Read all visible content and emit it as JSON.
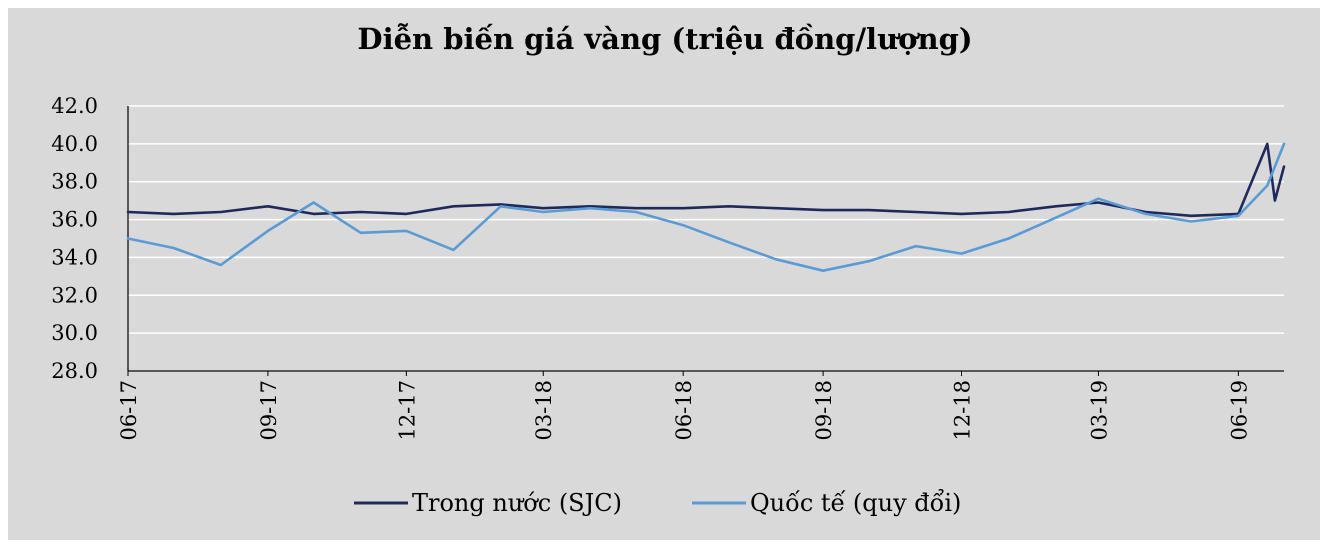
{
  "chart_data": {
    "type": "line",
    "title": "Diễn biến giá vàng (triệu đồng/lượng)",
    "xlabel": "",
    "ylabel": "",
    "ylim": [
      28.0,
      42.0
    ],
    "y_ticks": [
      "42.0",
      "40.0",
      "38.0",
      "36.0",
      "34.0",
      "32.0",
      "30.0",
      "28.0"
    ],
    "x_ticks": [
      "06-17",
      "09-17",
      "12-17",
      "03-18",
      "06-18",
      "09-18",
      "12-18",
      "03-19",
      "06-19"
    ],
    "x_range": [
      "2017-06",
      "2019-07"
    ],
    "grid": "horizontal",
    "legend_position": "bottom",
    "series": [
      {
        "name": "Trong nước (SJC)",
        "color": "#1f2a5c",
        "points": [
          [
            "2017-06",
            36.4
          ],
          [
            "2017-07",
            36.3
          ],
          [
            "2017-08",
            36.4
          ],
          [
            "2017-09",
            36.7
          ],
          [
            "2017-10",
            36.3
          ],
          [
            "2017-11",
            36.4
          ],
          [
            "2017-12",
            36.3
          ],
          [
            "2018-01",
            36.7
          ],
          [
            "2018-02",
            36.8
          ],
          [
            "2018-03",
            36.6
          ],
          [
            "2018-04",
            36.7
          ],
          [
            "2018-05",
            36.6
          ],
          [
            "2018-06",
            36.6
          ],
          [
            "2018-07",
            36.7
          ],
          [
            "2018-08",
            36.6
          ],
          [
            "2018-09",
            36.5
          ],
          [
            "2018-10",
            36.5
          ],
          [
            "2018-11",
            36.4
          ],
          [
            "2018-12",
            36.3
          ],
          [
            "2019-01",
            36.4
          ],
          [
            "2019-02",
            36.7
          ],
          [
            "2019-03",
            36.9
          ],
          [
            "2019-04",
            36.4
          ],
          [
            "2019-05",
            36.2
          ],
          [
            "2019-06",
            36.3
          ],
          [
            "2019-06-20",
            40.0
          ],
          [
            "2019-06-25",
            37.0
          ],
          [
            "2019-07",
            38.8
          ]
        ]
      },
      {
        "name": "Quốc tế (quy đổi)",
        "color": "#5b9bd5",
        "points": [
          [
            "2017-06",
            35.0
          ],
          [
            "2017-07",
            34.5
          ],
          [
            "2017-08",
            33.6
          ],
          [
            "2017-09",
            35.4
          ],
          [
            "2017-10",
            36.9
          ],
          [
            "2017-11",
            35.3
          ],
          [
            "2017-12",
            35.4
          ],
          [
            "2018-01",
            34.4
          ],
          [
            "2018-02",
            36.7
          ],
          [
            "2018-03",
            36.4
          ],
          [
            "2018-04",
            36.6
          ],
          [
            "2018-05",
            36.4
          ],
          [
            "2018-06",
            35.7
          ],
          [
            "2018-07",
            34.8
          ],
          [
            "2018-08",
            33.9
          ],
          [
            "2018-09",
            33.3
          ],
          [
            "2018-10",
            33.8
          ],
          [
            "2018-11",
            34.6
          ],
          [
            "2018-12",
            34.2
          ],
          [
            "2019-01",
            35.0
          ],
          [
            "2019-02",
            36.1
          ],
          [
            "2019-03",
            37.1
          ],
          [
            "2019-04",
            36.3
          ],
          [
            "2019-05",
            35.9
          ],
          [
            "2019-06",
            36.2
          ],
          [
            "2019-06-20",
            37.8
          ],
          [
            "2019-07",
            40.0
          ]
        ]
      }
    ]
  }
}
